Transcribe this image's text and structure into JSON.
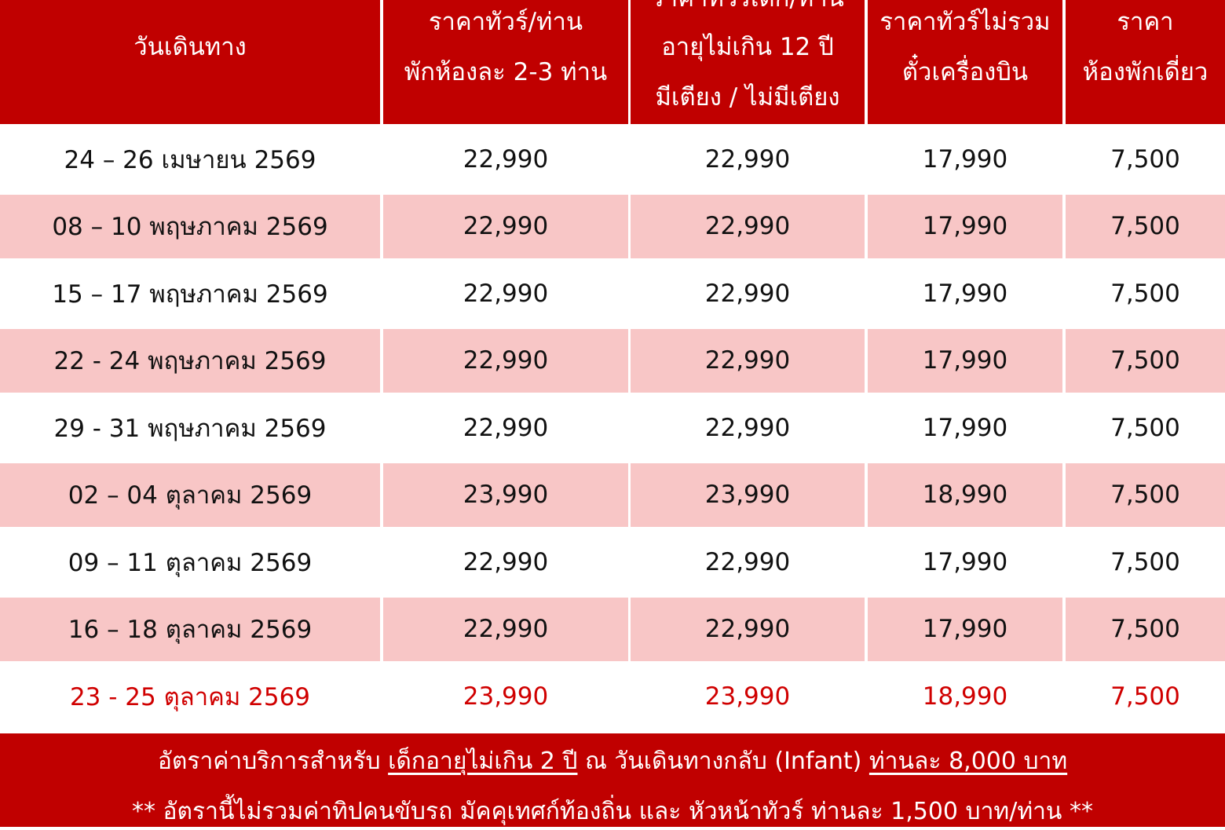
{
  "header": {
    "col1": [
      "วันเดินทาง"
    ],
    "col2": [
      "ราคาทัวร์/ท่าน",
      "พักห้องละ 2-3 ท่าน"
    ],
    "col3": [
      "ราคาทัวร์เด็ก/ท่าน",
      "อายุไม่เกิน 12 ปี",
      "มีเตียง / ไม่มีเตียง"
    ],
    "col4": [
      "ราคาทัวร์ไม่รวม",
      "ตั๋วเครื่องบิน"
    ],
    "col5": [
      "ราคา",
      "ห้องพักเดี่ยว"
    ]
  },
  "rows": [
    {
      "date": "24 – 26 เมษายน 2569",
      "adult": "22,990",
      "child": "22,990",
      "no_ticket": "17,990",
      "single": "7,500"
    },
    {
      "date": "08 – 10 พฤษภาคม 2569",
      "adult": "22,990",
      "child": "22,990",
      "no_ticket": "17,990",
      "single": "7,500"
    },
    {
      "date": "15 – 17 พฤษภาคม 2569",
      "adult": "22,990",
      "child": "22,990",
      "no_ticket": "17,990",
      "single": "7,500"
    },
    {
      "date": "22 - 24 พฤษภาคม 2569",
      "adult": "22,990",
      "child": "22,990",
      "no_ticket": "17,990",
      "single": "7,500"
    },
    {
      "date": "29 - 31 พฤษภาคม 2569",
      "adult": "22,990",
      "child": "22,990",
      "no_ticket": "17,990",
      "single": "7,500"
    },
    {
      "date": "02 – 04 ตุลาคม 2569",
      "adult": "23,990",
      "child": "23,990",
      "no_ticket": "18,990",
      "single": "7,500"
    },
    {
      "date": "09 – 11 ตุลาคม 2569",
      "adult": "22,990",
      "child": "22,990",
      "no_ticket": "17,990",
      "single": "7,500"
    },
    {
      "date": "16 – 18 ตุลาคม 2569",
      "adult": "22,990",
      "child": "22,990",
      "no_ticket": "17,990",
      "single": "7,500"
    },
    {
      "date": "23 - 25 ตุลาคม 2569",
      "adult": "23,990",
      "child": "23,990",
      "no_ticket": "18,990",
      "single": "7,500"
    }
  ],
  "footer": {
    "line1_a": "อัตราค่าบริการสำหรับ ",
    "line1_b": "เด็กอายุไม่เกิน 2 ปี",
    "line1_c": " ณ วันเดินทางกลับ (Infant) ",
    "line1_d": "ท่านละ 8,000 บาท",
    "line2": "** อัตรานี้ไม่รวมค่าทิปคนขับรถ มัคคุเทศก์ท้องถิ่น และ หัวหน้าทัวร์ ท่านละ 1,500 บาท/ท่าน **"
  },
  "colors": {
    "header_bg": "#c00000",
    "alt_row": "#f8c6c6",
    "highlight_text": "#d00000"
  }
}
